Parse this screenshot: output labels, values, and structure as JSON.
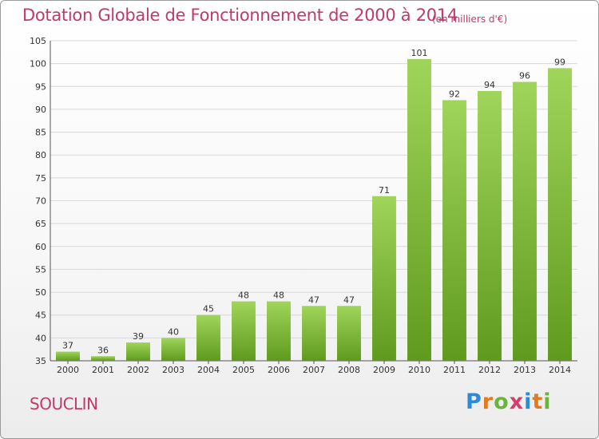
{
  "title": "Dotation Globale de Fonctionnement de 2000 à 2014",
  "subtitle": "(en milliers d'€)",
  "commune": "SOUCLIN",
  "logo": {
    "letters": [
      "P",
      "r",
      "o",
      "x",
      "i",
      "t",
      "i"
    ],
    "colors": [
      "#2f8ad6",
      "#e07b1f",
      "#6ab33c",
      "#d93b6e",
      "#2f8ad6",
      "#e07b1f",
      "#6ab33c"
    ]
  },
  "colors": {
    "bar_top": "#9fd55a",
    "bar_bottom": "#5f9a1e",
    "grid": "#d8d8d8",
    "accent": "#c0396b"
  },
  "chart_data": {
    "type": "bar",
    "categories": [
      "2000",
      "2001",
      "2002",
      "2003",
      "2004",
      "2005",
      "2006",
      "2007",
      "2008",
      "2009",
      "2010",
      "2011",
      "2012",
      "2013",
      "2014"
    ],
    "values": [
      37,
      36,
      39,
      40,
      45,
      48,
      48,
      47,
      47,
      71,
      101,
      92,
      94,
      96,
      99
    ],
    "ylim": [
      35,
      105
    ],
    "yticks": [
      35,
      40,
      45,
      50,
      55,
      60,
      65,
      70,
      75,
      80,
      85,
      90,
      95,
      100,
      105
    ],
    "grid": true,
    "xlabel": "",
    "ylabel": ""
  }
}
